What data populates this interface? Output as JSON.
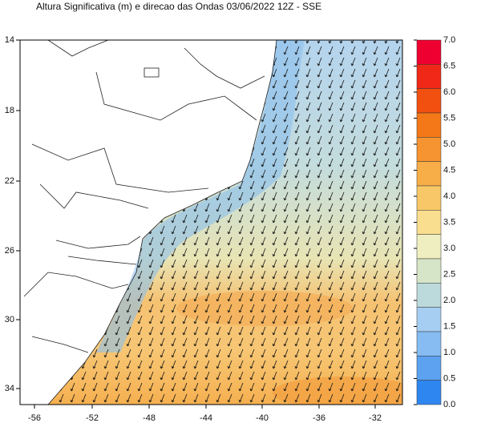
{
  "title": "Altura Significativa (m) e direcao das Ondas 03/06/2022 12Z - SSE",
  "lat_labels": [
    "14",
    "18",
    "22",
    "26",
    "30",
    "34"
  ],
  "lon_labels": [
    "-56",
    "-52",
    "-48",
    "-44",
    "-40",
    "-36",
    "-32"
  ],
  "colorbar": {
    "labels": [
      "7.0",
      "6.5",
      "6.0",
      "5.5",
      "5.0",
      "4.5",
      "4.0",
      "3.5",
      "3.0",
      "2.5",
      "2.0",
      "1.5",
      "1.0",
      "0.5",
      "0.0"
    ],
    "colors": [
      "#ee0030",
      "#f02818",
      "#f25010",
      "#f47818",
      "#f59430",
      "#f7ae48",
      "#f8c868",
      "#f9de90",
      "#eeeec0",
      "#d6e4c8",
      "#bcdadc",
      "#a6cef2",
      "#86bcf2",
      "#5ca2f0",
      "#2e86f0"
    ]
  }
}
